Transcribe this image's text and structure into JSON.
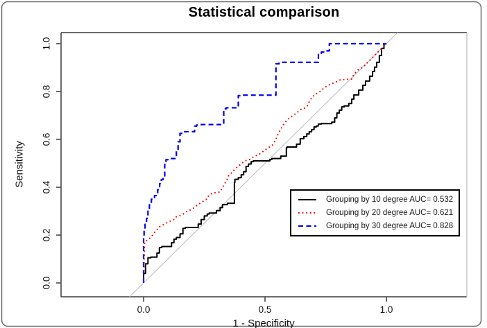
{
  "figure": {
    "title": "Statistical comparison",
    "x_axis_label": "1 - Specificity",
    "y_axis_label": "Sensitivity"
  },
  "axes": {
    "x_tick_labels": [
      "0.0",
      "0.5",
      "1.0"
    ],
    "y_tick_labels": [
      "0.0",
      "0.2",
      "0.4",
      "0.6",
      "0.8",
      "1.0"
    ]
  },
  "colors": {
    "axis": "#3a3a3a",
    "plot_border_right": "#c9c9c9",
    "reference_line": "#c0c0c0",
    "outer_border": "#6b6b6b",
    "series_black": "#000000",
    "series_red": "#fe0000",
    "series_blue": "#0000ee"
  },
  "chart_data": {
    "type": "line",
    "title": "Statistical comparison",
    "xlabel": "1 - Specificity",
    "ylabel": "Sensitivity",
    "xlim": [
      0,
      1
    ],
    "ylim": [
      0,
      1
    ],
    "x_ticks": [
      0.0,
      0.5,
      1.0
    ],
    "y_ticks": [
      0.0,
      0.2,
      0.4,
      0.6,
      0.8,
      1.0
    ],
    "grid": false,
    "legend_position": "right-center-box",
    "reference_diagonal": {
      "from": [
        0,
        0
      ],
      "to": [
        1,
        1
      ],
      "color": "#c0c0c0"
    },
    "series": [
      {
        "name": "Grouping by 10 degree",
        "auc": 0.532,
        "legend_label": "Grouping by 10 degree AUC= 0.532",
        "color": "#000000",
        "line_style": "solid",
        "line_width": 2,
        "interpolation": "step",
        "points": [
          [
            0,
            0
          ],
          [
            0.008,
            0.04
          ],
          [
            0.018,
            0.08
          ],
          [
            0.03,
            0.105
          ],
          [
            0.055,
            0.108
          ],
          [
            0.065,
            0.125
          ],
          [
            0.075,
            0.148
          ],
          [
            0.115,
            0.152
          ],
          [
            0.125,
            0.168
          ],
          [
            0.135,
            0.183
          ],
          [
            0.15,
            0.19
          ],
          [
            0.162,
            0.205
          ],
          [
            0.172,
            0.228
          ],
          [
            0.225,
            0.232
          ],
          [
            0.237,
            0.246
          ],
          [
            0.25,
            0.265
          ],
          [
            0.262,
            0.28
          ],
          [
            0.27,
            0.288
          ],
          [
            0.3,
            0.292
          ],
          [
            0.315,
            0.302
          ],
          [
            0.325,
            0.315
          ],
          [
            0.345,
            0.327
          ],
          [
            0.374,
            0.333
          ],
          [
            0.376,
            0.42
          ],
          [
            0.39,
            0.433
          ],
          [
            0.402,
            0.44
          ],
          [
            0.412,
            0.452
          ],
          [
            0.422,
            0.465
          ],
          [
            0.432,
            0.487
          ],
          [
            0.443,
            0.497
          ],
          [
            0.452,
            0.507
          ],
          [
            0.52,
            0.51
          ],
          [
            0.528,
            0.516
          ],
          [
            0.565,
            0.52
          ],
          [
            0.588,
            0.53
          ],
          [
            0.591,
            0.565
          ],
          [
            0.63,
            0.568
          ],
          [
            0.645,
            0.58
          ],
          [
            0.66,
            0.603
          ],
          [
            0.672,
            0.612
          ],
          [
            0.682,
            0.623
          ],
          [
            0.692,
            0.632
          ],
          [
            0.702,
            0.641
          ],
          [
            0.712,
            0.652
          ],
          [
            0.72,
            0.656
          ],
          [
            0.732,
            0.664
          ],
          [
            0.775,
            0.666
          ],
          [
            0.787,
            0.672
          ],
          [
            0.796,
            0.69
          ],
          [
            0.806,
            0.71
          ],
          [
            0.816,
            0.722
          ],
          [
            0.826,
            0.736
          ],
          [
            0.845,
            0.74
          ],
          [
            0.857,
            0.75
          ],
          [
            0.866,
            0.768
          ],
          [
            0.886,
            0.786
          ],
          [
            0.903,
            0.806
          ],
          [
            0.914,
            0.826
          ],
          [
            0.931,
            0.844
          ],
          [
            0.943,
            0.864
          ],
          [
            0.951,
            0.884
          ],
          [
            0.96,
            0.902
          ],
          [
            0.971,
            0.922
          ],
          [
            0.98,
            0.951
          ],
          [
            0.99,
            0.98
          ],
          [
            1,
            1
          ]
        ]
      },
      {
        "name": "Grouping by 20 degree",
        "auc": 0.621,
        "legend_label": "Grouping by 20 degree AUC= 0.621",
        "color": "#fe0000",
        "line_style": "dotted",
        "line_width": 2,
        "interpolation": "linear",
        "points": [
          [
            0,
            0
          ],
          [
            0.004,
            0.17
          ],
          [
            0.03,
            0.19
          ],
          [
            0.046,
            0.212
          ],
          [
            0.066,
            0.235
          ],
          [
            0.086,
            0.246
          ],
          [
            0.103,
            0.255
          ],
          [
            0.123,
            0.264
          ],
          [
            0.131,
            0.275
          ],
          [
            0.157,
            0.284
          ],
          [
            0.18,
            0.3
          ],
          [
            0.2,
            0.308
          ],
          [
            0.217,
            0.322
          ],
          [
            0.237,
            0.336
          ],
          [
            0.257,
            0.348
          ],
          [
            0.266,
            0.362
          ],
          [
            0.274,
            0.371
          ],
          [
            0.294,
            0.377
          ],
          [
            0.314,
            0.38
          ],
          [
            0.331,
            0.41
          ],
          [
            0.343,
            0.43
          ],
          [
            0.351,
            0.45
          ],
          [
            0.36,
            0.458
          ],
          [
            0.38,
            0.48
          ],
          [
            0.4,
            0.496
          ],
          [
            0.417,
            0.51
          ],
          [
            0.437,
            0.516
          ],
          [
            0.457,
            0.53
          ],
          [
            0.474,
            0.536
          ],
          [
            0.494,
            0.551
          ],
          [
            0.514,
            0.565
          ],
          [
            0.531,
            0.576
          ],
          [
            0.545,
            0.6
          ],
          [
            0.553,
            0.62
          ],
          [
            0.566,
            0.645
          ],
          [
            0.58,
            0.668
          ],
          [
            0.594,
            0.684
          ],
          [
            0.61,
            0.696
          ],
          [
            0.63,
            0.71
          ],
          [
            0.646,
            0.725
          ],
          [
            0.66,
            0.728
          ],
          [
            0.674,
            0.74
          ],
          [
            0.686,
            0.765
          ],
          [
            0.703,
            0.786
          ],
          [
            0.723,
            0.797
          ],
          [
            0.743,
            0.815
          ],
          [
            0.76,
            0.826
          ],
          [
            0.78,
            0.835
          ],
          [
            0.8,
            0.843
          ],
          [
            0.81,
            0.849
          ],
          [
            0.857,
            0.852
          ],
          [
            0.866,
            0.872
          ],
          [
            0.886,
            0.893
          ],
          [
            0.903,
            0.901
          ],
          [
            0.923,
            0.922
          ],
          [
            0.943,
            0.942
          ],
          [
            0.96,
            0.96
          ],
          [
            0.98,
            0.98
          ],
          [
            1,
            1
          ]
        ]
      },
      {
        "name": "Grouping by 30 degree",
        "auc": 0.828,
        "legend_label": "Grouping by 30 degree AUC= 0.828",
        "color": "#0000ee",
        "line_style": "dashed",
        "line_width": 2.2,
        "interpolation": "step",
        "points": [
          [
            0,
            0
          ],
          [
            0.002,
            0.19
          ],
          [
            0.006,
            0.22
          ],
          [
            0.012,
            0.245
          ],
          [
            0.018,
            0.27
          ],
          [
            0.024,
            0.3
          ],
          [
            0.032,
            0.33
          ],
          [
            0.045,
            0.35
          ],
          [
            0.058,
            0.365
          ],
          [
            0.066,
            0.39
          ],
          [
            0.073,
            0.415
          ],
          [
            0.08,
            0.432
          ],
          [
            0.087,
            0.447
          ],
          [
            0.092,
            0.507
          ],
          [
            0.1,
            0.515
          ],
          [
            0.135,
            0.52
          ],
          [
            0.142,
            0.55
          ],
          [
            0.15,
            0.59
          ],
          [
            0.16,
            0.625
          ],
          [
            0.21,
            0.632
          ],
          [
            0.218,
            0.655
          ],
          [
            0.23,
            0.66
          ],
          [
            0.33,
            0.662
          ],
          [
            0.34,
            0.728
          ],
          [
            0.39,
            0.732
          ],
          [
            0.397,
            0.783
          ],
          [
            0.545,
            0.785
          ],
          [
            0.558,
            0.916
          ],
          [
            0.72,
            0.922
          ],
          [
            0.732,
            0.955
          ],
          [
            0.745,
            0.965
          ],
          [
            0.765,
            0.97
          ],
          [
            0.775,
            1
          ],
          [
            1,
            1
          ]
        ]
      }
    ]
  }
}
